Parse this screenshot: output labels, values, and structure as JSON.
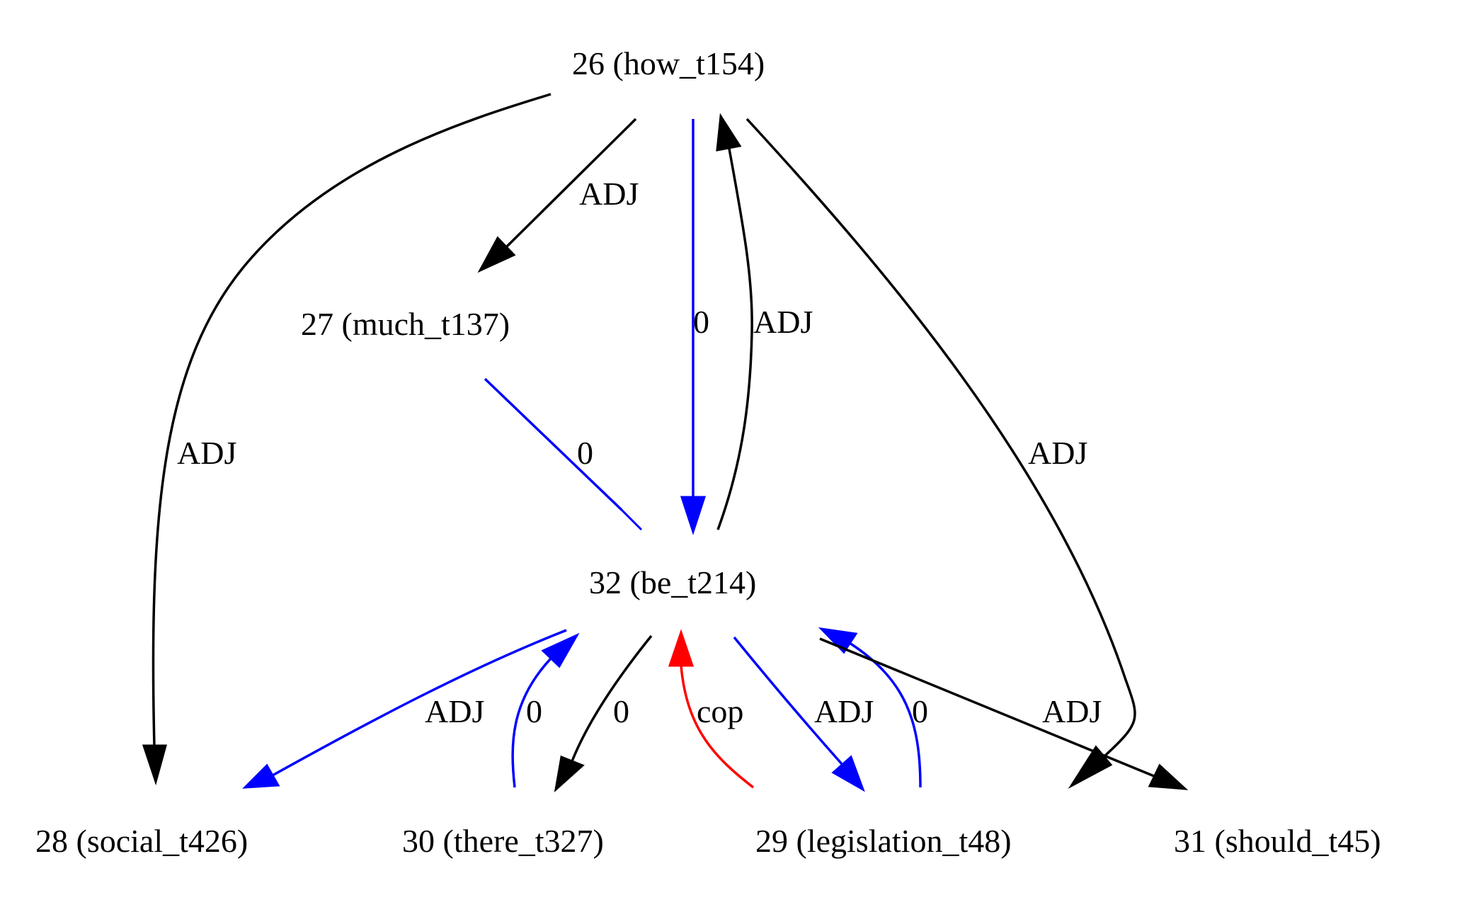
{
  "graph": {
    "nodes": {
      "n26": "26 (how_t154)",
      "n27": "27 (much_t137)",
      "n32": "32 (be_t214)",
      "n28": "28 (social_t426)",
      "n30": "30 (there_t327)",
      "n29": "29 (legislation_t48)",
      "n31": "31 (should_t45)"
    },
    "edges": [
      {
        "id": "e26-28",
        "from": "26 (how_t154)",
        "to": "28 (social_t426)",
        "label": "ADJ",
        "color": "#000000"
      },
      {
        "id": "e26-27",
        "from": "26 (how_t154)",
        "to": "27 (much_t137)",
        "label": "ADJ",
        "color": "#000000"
      },
      {
        "id": "e26-32",
        "from": "26 (how_t154)",
        "to": "32 (be_t214)",
        "label": "0",
        "color": "#0000ff"
      },
      {
        "id": "e32-26",
        "from": "32 (be_t214)",
        "to": "26 (how_t154)",
        "label": "ADJ",
        "color": "#000000"
      },
      {
        "id": "e26-29",
        "from": "26 (how_t154)",
        "to": "29 (legislation_t48)",
        "label": "ADJ",
        "color": "#000000"
      },
      {
        "id": "e27-32",
        "from": "27 (much_t137)",
        "to": "32 (be_t214)",
        "label": "0",
        "color": "#0000ff"
      },
      {
        "id": "e32-28",
        "from": "32 (be_t214)",
        "to": "28 (social_t426)",
        "label": "ADJ",
        "color": "#0000ff"
      },
      {
        "id": "e30-32",
        "from": "30 (there_t327)",
        "to": "32 (be_t214)",
        "label": "0",
        "color": "#0000ff"
      },
      {
        "id": "e32-30",
        "from": "32 (be_t214)",
        "to": "30 (there_t327)",
        "label": "0",
        "color": "#000000"
      },
      {
        "id": "e29-32cop",
        "from": "29 (legislation_t48)",
        "to": "32 (be_t214)",
        "label": "cop",
        "color": "#ff0000"
      },
      {
        "id": "e32-29",
        "from": "32 (be_t214)",
        "to": "29 (legislation_t48)",
        "label": "ADJ",
        "color": "#0000ff"
      },
      {
        "id": "e29-32",
        "from": "29 (legislation_t48)",
        "to": "32 (be_t214)",
        "label": "0",
        "color": "#0000ff"
      },
      {
        "id": "e32-31",
        "from": "32 (be_t214)",
        "to": "31 (should_t45)",
        "label": "ADJ",
        "color": "#000000"
      }
    ]
  }
}
